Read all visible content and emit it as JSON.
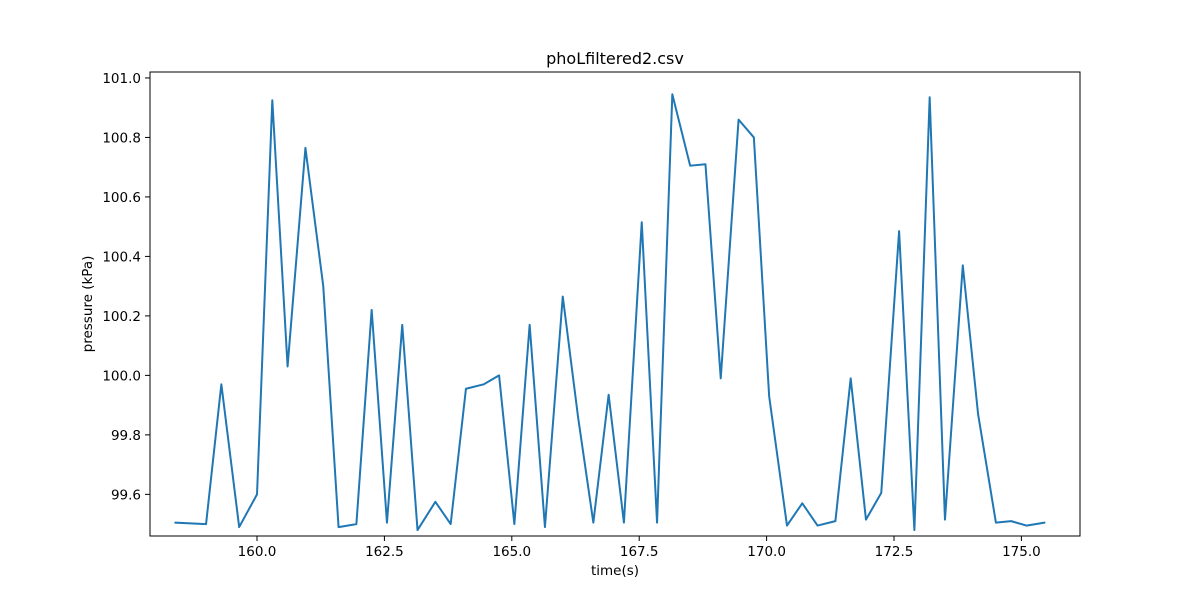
{
  "chart_data": {
    "type": "line",
    "title": "phoLfiltered2.csv",
    "xlabel": "time(s)",
    "ylabel": "pressure (kPa)",
    "xlim": [
      157.9,
      176.15
    ],
    "ylim": [
      99.46,
      101.02
    ],
    "xticks": [
      160.0,
      162.5,
      165.0,
      167.5,
      170.0,
      172.5,
      175.0
    ],
    "xtick_labels": [
      "160.0",
      "162.5",
      "165.0",
      "167.5",
      "170.0",
      "172.5",
      "175.0"
    ],
    "yticks": [
      99.6,
      99.8,
      100.0,
      100.2,
      100.4,
      100.6,
      100.8,
      101.0
    ],
    "ytick_labels": [
      "99.6",
      "99.8",
      "100.0",
      "100.2",
      "100.4",
      "100.6",
      "100.8",
      "101.0"
    ],
    "grid": false,
    "series": [
      {
        "color": "#1f77b4",
        "x": [
          158.4,
          159.0,
          159.3,
          159.65,
          160.0,
          160.3,
          160.6,
          160.95,
          161.3,
          161.6,
          161.95,
          162.25,
          162.55,
          162.85,
          163.15,
          163.5,
          163.8,
          164.1,
          164.45,
          164.75,
          165.05,
          165.35,
          165.65,
          166.0,
          166.3,
          166.6,
          166.9,
          167.2,
          167.55,
          167.85,
          168.15,
          168.5,
          168.8,
          169.1,
          169.45,
          169.75,
          170.05,
          170.4,
          170.7,
          171.0,
          171.35,
          171.65,
          171.95,
          172.25,
          172.6,
          172.9,
          173.2,
          173.5,
          173.85,
          174.15,
          174.5,
          174.8,
          175.1,
          175.45
        ],
        "y": [
          99.505,
          99.5,
          99.97,
          99.49,
          99.6,
          100.925,
          100.03,
          100.765,
          100.3,
          99.49,
          99.5,
          100.22,
          99.505,
          100.17,
          99.48,
          99.575,
          99.5,
          99.955,
          99.97,
          100.0,
          99.5,
          100.17,
          99.49,
          100.265,
          99.86,
          99.505,
          99.935,
          99.505,
          100.515,
          99.505,
          100.945,
          100.705,
          100.71,
          99.99,
          100.86,
          100.8,
          99.93,
          99.495,
          99.57,
          99.495,
          99.51,
          99.99,
          99.515,
          99.605,
          100.485,
          99.48,
          100.935,
          99.515,
          100.37,
          99.87,
          99.505,
          99.51,
          99.495,
          99.505
        ]
      }
    ]
  }
}
